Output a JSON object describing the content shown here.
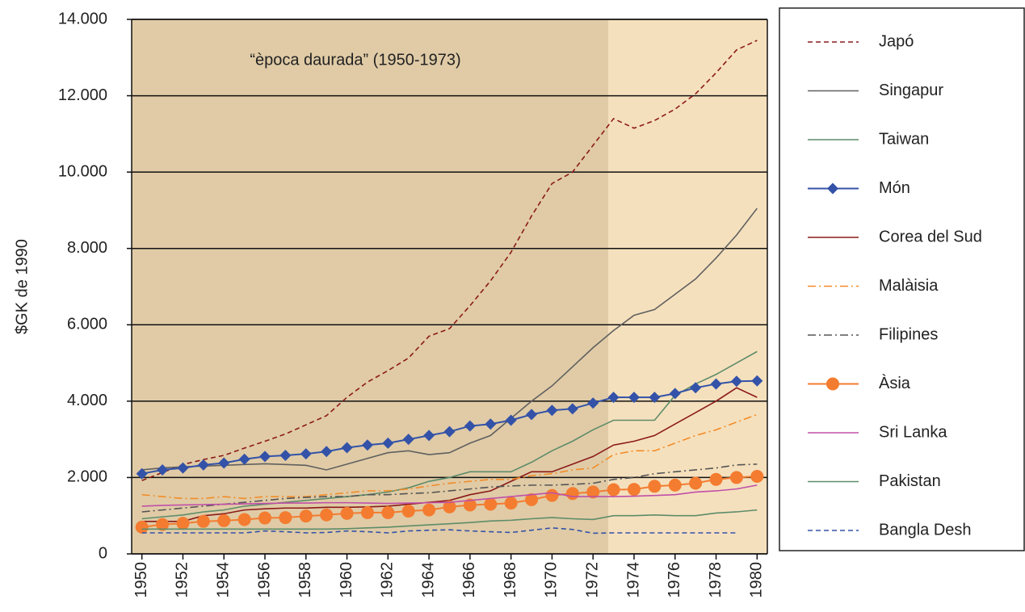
{
  "chart_data": {
    "type": "line",
    "annotation": "“època daurada” (1950-1973)",
    "ylabel": "$GK de 1990",
    "x": [
      1950,
      1951,
      1952,
      1953,
      1954,
      1955,
      1956,
      1957,
      1958,
      1959,
      1960,
      1961,
      1962,
      1963,
      1964,
      1965,
      1966,
      1967,
      1968,
      1969,
      1970,
      1971,
      1972,
      1973,
      1974,
      1975,
      1976,
      1977,
      1978,
      1979,
      1980
    ],
    "xlim": [
      1949.5,
      1980.5
    ],
    "xticks": [
      1950,
      1952,
      1954,
      1956,
      1958,
      1960,
      1962,
      1964,
      1966,
      1968,
      1970,
      1972,
      1974,
      1976,
      1978,
      1980
    ],
    "ylim": [
      0,
      14000
    ],
    "yticks": [
      0,
      {
        "value": 2000,
        "label": "2.000"
      },
      {
        "value": 4000,
        "label": "4.000"
      },
      {
        "value": 6000,
        "label": "6.000"
      },
      {
        "value": 8000,
        "label": "8.000"
      },
      {
        "value": 10000,
        "label": "10.000"
      },
      {
        "value": 12000,
        "label": "12.000"
      },
      {
        "value": 14000,
        "label": "14.000"
      }
    ],
    "grid": true,
    "legend": "right",
    "series": [
      {
        "name": "Japó",
        "color": "#8b1a1a",
        "dash": "dashed",
        "values": [
          1920,
          2130,
          2340,
          2470,
          2580,
          2770,
          2950,
          3140,
          3380,
          3620,
          4100,
          4500,
          4800,
          5130,
          5700,
          5900,
          6500,
          7150,
          7900,
          8850,
          9700,
          10000,
          10700,
          11400,
          11150,
          11350,
          11650,
          12050,
          12600,
          13200,
          13450
        ]
      },
      {
        "name": "Singapur",
        "color": "#606060",
        "dash": "solid",
        "values": [
          2200,
          2250,
          2280,
          2300,
          2320,
          2340,
          2360,
          2340,
          2320,
          2200,
          2350,
          2500,
          2650,
          2700,
          2600,
          2650,
          2900,
          3100,
          3550,
          4000,
          4400,
          4900,
          5400,
          5850,
          6250,
          6400,
          6800,
          7200,
          7750,
          8350,
          9050
        ]
      },
      {
        "name": "Taiwan",
        "color": "#5e8c6a",
        "dash": "solid",
        "values": [
          920,
          970,
          1020,
          1100,
          1150,
          1250,
          1300,
          1350,
          1400,
          1450,
          1500,
          1550,
          1620,
          1730,
          1900,
          2000,
          2150,
          2150,
          2150,
          2400,
          2700,
          2950,
          3250,
          3500,
          3500,
          3500,
          4150,
          4450,
          4700,
          5000,
          5300
        ]
      },
      {
        "name": "Món",
        "color": "#3352a8",
        "dash": "solid",
        "marker": "diamond",
        "values": [
          2100,
          2200,
          2250,
          2330,
          2380,
          2480,
          2550,
          2580,
          2620,
          2680,
          2780,
          2850,
          2900,
          3000,
          3100,
          3200,
          3350,
          3400,
          3500,
          3650,
          3760,
          3800,
          3950,
          4100,
          4100,
          4100,
          4200,
          4350,
          4450,
          4520,
          4530
        ]
      },
      {
        "name": "Corea del Sud",
        "color": "#8b1a1a",
        "dash": "solid",
        "values": [
          850,
          850,
          850,
          1000,
          1050,
          1150,
          1180,
          1200,
          1200,
          1220,
          1220,
          1230,
          1250,
          1300,
          1350,
          1400,
          1550,
          1650,
          1900,
          2150,
          2150,
          2350,
          2550,
          2850,
          2950,
          3100,
          3400,
          3700,
          4000,
          4350,
          4100
        ]
      },
      {
        "name": "Malàisia",
        "color": "#f28c28",
        "dash": "dashdot",
        "values": [
          1550,
          1500,
          1450,
          1450,
          1500,
          1450,
          1500,
          1500,
          1500,
          1550,
          1600,
          1650,
          1650,
          1700,
          1780,
          1850,
          1900,
          1950,
          1950,
          2050,
          2100,
          2200,
          2250,
          2600,
          2700,
          2700,
          2900,
          3100,
          3250,
          3450,
          3650
        ]
      },
      {
        "name": "Filipines",
        "color": "#555555",
        "dash": "dashdot",
        "values": [
          1100,
          1150,
          1200,
          1250,
          1300,
          1350,
          1400,
          1450,
          1480,
          1500,
          1500,
          1550,
          1550,
          1580,
          1600,
          1650,
          1700,
          1750,
          1780,
          1800,
          1800,
          1820,
          1850,
          1950,
          2000,
          2100,
          2150,
          2200,
          2250,
          2330,
          2350
        ]
      },
      {
        "name": "Àsia",
        "color": "#f47c30",
        "dash": "solid",
        "marker": "circle",
        "values": [
          700,
          770,
          800,
          850,
          870,
          900,
          940,
          950,
          990,
          1020,
          1060,
          1080,
          1080,
          1120,
          1150,
          1230,
          1280,
          1300,
          1330,
          1420,
          1530,
          1580,
          1620,
          1680,
          1690,
          1770,
          1800,
          1850,
          1950,
          2000,
          2030
        ]
      },
      {
        "name": "Sri Lanka",
        "color": "#c050a8",
        "dash": "solid",
        "values": [
          1250,
          1270,
          1280,
          1290,
          1300,
          1310,
          1320,
          1330,
          1330,
          1340,
          1340,
          1330,
          1320,
          1330,
          1340,
          1350,
          1400,
          1450,
          1500,
          1550,
          1600,
          1500,
          1500,
          1500,
          1510,
          1530,
          1550,
          1620,
          1650,
          1700,
          1800
        ]
      },
      {
        "name": "Pakistan",
        "color": "#5e8c6a",
        "dash": "solid",
        "values": [
          650,
          650,
          650,
          650,
          650,
          650,
          650,
          650,
          650,
          650,
          660,
          680,
          700,
          730,
          760,
          790,
          820,
          860,
          880,
          920,
          950,
          920,
          900,
          1000,
          1000,
          1020,
          1000,
          1000,
          1070,
          1100,
          1150
        ]
      },
      {
        "name": "Bangla Desh",
        "color": "#3352a8",
        "dash": "dashed",
        "values": [
          550,
          550,
          550,
          550,
          550,
          550,
          600,
          580,
          550,
          560,
          600,
          580,
          550,
          600,
          620,
          630,
          600,
          580,
          560,
          620,
          680,
          640,
          540,
          550,
          550,
          550,
          550,
          550,
          550,
          550,
          null
        ]
      }
    ]
  }
}
